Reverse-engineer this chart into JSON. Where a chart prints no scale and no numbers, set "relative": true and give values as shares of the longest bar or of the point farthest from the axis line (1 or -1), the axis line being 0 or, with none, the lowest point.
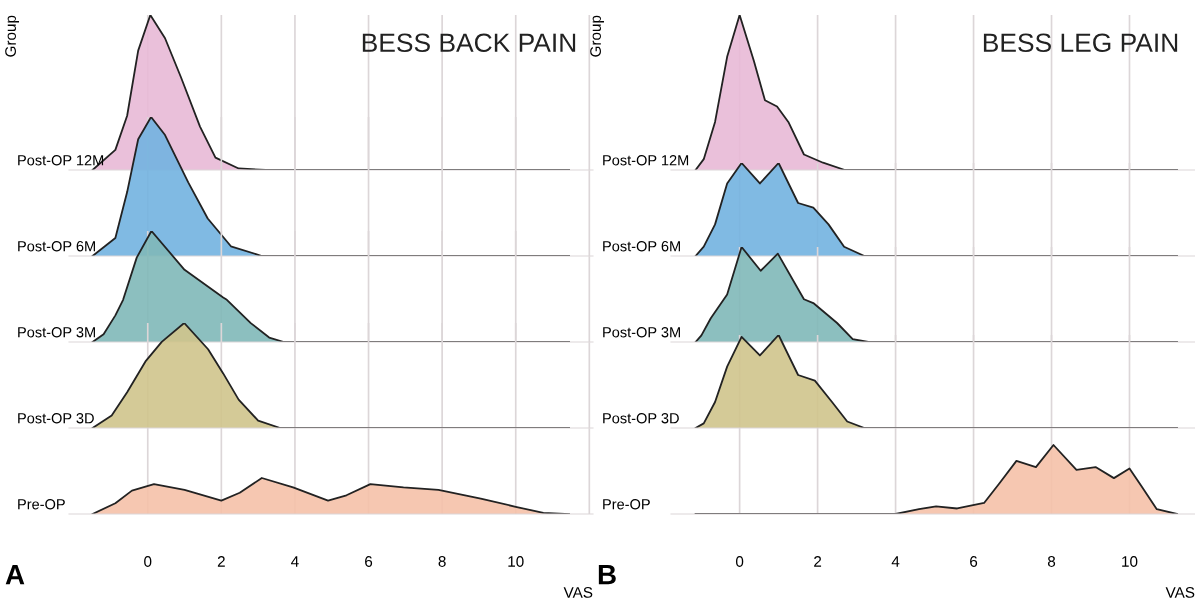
{
  "chart_data": [
    {
      "type": "area",
      "title": "BESS BACK PAIN",
      "ylabel": "Group",
      "relative": true,
      "grid": "x",
      "tick_labels": false,
      "xlim": [
        -2.14,
        12.1
      ],
      "xticks": [
        0,
        2,
        4,
        6,
        8,
        10
      ],
      "ref_lines": [
        {
          "axis": "x",
          "value": 12,
          "color": "#dcd6d8"
        }
      ],
      "series": [
        {
          "name": "Post-OP 12M",
          "color": "#e8b9d6",
          "x": [
            -1.5,
            -0.88,
            -0.56,
            -0.26,
            0.07,
            0.47,
            0.9,
            1.42,
            1.84,
            2.47,
            3.2,
            11.45
          ],
          "values": [
            0,
            0.13,
            0.35,
            0.77,
            1,
            0.85,
            0.6,
            0.28,
            0.08,
            0.01,
            0,
            0
          ]
        }
      ]
    },
    {
      "type": "area",
      "relative": true,
      "grid": "x",
      "tick_labels": false,
      "xlim": [
        -2.14,
        12.1
      ],
      "xticks": [
        0,
        2,
        4,
        6,
        8,
        10
      ],
      "ref_lines": [
        {
          "axis": "x",
          "value": 12,
          "color": "#dcd6d8"
        }
      ],
      "series": [
        {
          "name": "Post-OP 6M",
          "color": "#72b2e0",
          "x": [
            -1.5,
            -0.88,
            -0.56,
            -0.26,
            0.09,
            0.47,
            1.1,
            1.63,
            2.26,
            3.1,
            11.45
          ],
          "values": [
            0,
            0.13,
            0.46,
            0.84,
            1,
            0.87,
            0.53,
            0.27,
            0.07,
            0,
            0
          ]
        }
      ]
    },
    {
      "type": "area",
      "relative": true,
      "grid": "x",
      "tick_labels": false,
      "xlim": [
        -2.14,
        12.1
      ],
      "xticks": [
        0,
        2,
        4,
        6,
        8,
        10
      ],
      "ref_lines": [
        {
          "axis": "x",
          "value": 12,
          "color": "#dcd6d8"
        }
      ],
      "series": [
        {
          "name": "Post-OP 3M",
          "color": "#7fb8b8",
          "x": [
            -1.5,
            -1.2,
            -0.88,
            -0.67,
            -0.3,
            0.1,
            1.0,
            2.05,
            2.15,
            2.8,
            3.3,
            3.7,
            11.45
          ],
          "values": [
            0,
            0.07,
            0.24,
            0.38,
            0.76,
            1,
            0.65,
            0.4,
            0.38,
            0.17,
            0.04,
            0,
            0
          ]
        }
      ]
    },
    {
      "type": "area",
      "relative": true,
      "grid": "x",
      "tick_labels": false,
      "xlim": [
        -2.14,
        12.1
      ],
      "xticks": [
        0,
        2,
        4,
        6,
        8,
        10
      ],
      "ref_lines": [
        {
          "axis": "x",
          "value": 12,
          "color": "#dcd6d8"
        }
      ],
      "series": [
        {
          "name": "Post-OP 3D",
          "color": "#cfc48c",
          "x": [
            -1.5,
            -0.98,
            -0.56,
            -0.05,
            0.38,
            0.99,
            1.64,
            2.05,
            2.47,
            3.0,
            3.6,
            11.45
          ],
          "values": [
            0,
            0.12,
            0.34,
            0.64,
            0.82,
            1,
            0.75,
            0.52,
            0.27,
            0.07,
            0,
            0
          ]
        }
      ]
    },
    {
      "type": "area",
      "xlabel": "VAS",
      "annotations": [
        "A"
      ],
      "relative": true,
      "grid": "x",
      "tick_labels": "x",
      "xlim": [
        -2.14,
        12.1
      ],
      "xticks": [
        0,
        2,
        4,
        6,
        8,
        10
      ],
      "ref_lines": [
        {
          "axis": "x",
          "value": 12,
          "color": "#dcd6d8"
        }
      ],
      "series": [
        {
          "name": "Pre-OP",
          "color": "#f5c1a8",
          "x": [
            -1.5,
            -0.88,
            -0.43,
            0.17,
            1.0,
            2.0,
            2.5,
            3.1,
            3.95,
            4.9,
            5.4,
            6.05,
            6.95,
            7.9,
            9.05,
            10.0,
            10.75,
            11.45
          ],
          "values": [
            0,
            0.3,
            0.65,
            0.83,
            0.67,
            0.37,
            0.59,
            1,
            0.74,
            0.37,
            0.52,
            0.83,
            0.74,
            0.67,
            0.43,
            0.2,
            0.03,
            0
          ]
        }
      ]
    },
    {
      "type": "area",
      "title": "BESS LEG PAIN",
      "ylabel": "Group",
      "relative": true,
      "grid": "x",
      "tick_labels": false,
      "xlim": [
        -1.76,
        11.68
      ],
      "xticks": [
        0,
        2,
        4,
        6,
        8,
        10
      ],
      "series": [
        {
          "name": "Post-OP 12M",
          "color": "#e8b9d6",
          "x": [
            -1.13,
            -0.92,
            -0.63,
            -0.32,
            0.0,
            0.37,
            0.65,
            0.96,
            1.25,
            1.65,
            2.14,
            2.7,
            11.22
          ],
          "values": [
            0,
            0.07,
            0.31,
            0.73,
            1,
            0.7,
            0.45,
            0.41,
            0.31,
            0.1,
            0.047,
            0,
            0
          ]
        }
      ]
    },
    {
      "type": "area",
      "relative": true,
      "grid": "x",
      "tick_labels": false,
      "xlim": [
        -1.76,
        11.68
      ],
      "xticks": [
        0,
        2,
        4,
        6,
        8,
        10
      ],
      "series": [
        {
          "name": "Post-OP 6M",
          "color": "#72b2e0",
          "x": [
            -1.13,
            -0.92,
            -0.63,
            -0.32,
            0.05,
            0.52,
            1.0,
            1.5,
            1.89,
            2.28,
            2.68,
            3.2,
            11.22
          ],
          "values": [
            0,
            0.1,
            0.34,
            0.78,
            1,
            0.78,
            1,
            0.57,
            0.52,
            0.34,
            0.1,
            0,
            0
          ]
        }
      ]
    },
    {
      "type": "area",
      "relative": true,
      "grid": "x",
      "tick_labels": false,
      "xlim": [
        -1.76,
        11.68
      ],
      "xticks": [
        0,
        2,
        4,
        6,
        8,
        10
      ],
      "series": [
        {
          "name": "Post-OP 3M",
          "color": "#7fb8b8",
          "x": [
            -1.13,
            -0.98,
            -0.74,
            -0.32,
            0.05,
            0.54,
            0.98,
            1.65,
            1.89,
            2.5,
            2.9,
            3.3,
            11.22
          ],
          "values": [
            0,
            0.07,
            0.25,
            0.5,
            1,
            0.75,
            0.93,
            0.45,
            0.41,
            0.2,
            0.03,
            0,
            0
          ]
        }
      ]
    },
    {
      "type": "area",
      "relative": true,
      "grid": "x",
      "tick_labels": false,
      "xlim": [
        -1.76,
        11.68
      ],
      "xticks": [
        0,
        2,
        4,
        6,
        8,
        10
      ],
      "series": [
        {
          "name": "Post-OP 3D",
          "color": "#cfc48c",
          "x": [
            -1.13,
            -0.92,
            -0.63,
            -0.32,
            0.05,
            0.52,
            1.0,
            1.5,
            1.93,
            2.37,
            2.76,
            3.2,
            11.22
          ],
          "values": [
            0,
            0.05,
            0.28,
            0.66,
            0.98,
            0.78,
            1,
            0.57,
            0.51,
            0.28,
            0.07,
            0,
            0
          ]
        }
      ]
    },
    {
      "type": "area",
      "xlabel": "VAS",
      "annotations": [
        "B"
      ],
      "relative": true,
      "grid": "x",
      "tick_labels": "x",
      "xlim": [
        -1.76,
        11.68
      ],
      "xticks": [
        0,
        2,
        4,
        6,
        8,
        10
      ],
      "series": [
        {
          "name": "Pre-OP",
          "color": "#f5c1a8",
          "x": [
            -1.13,
            4.0,
            4.6,
            5.04,
            5.58,
            6.27,
            6.67,
            7.1,
            7.6,
            8.05,
            8.64,
            9.13,
            9.6,
            10.0,
            10.3,
            10.7,
            11.22
          ],
          "values": [
            0,
            0,
            0.07,
            0.11,
            0.08,
            0.16,
            0.45,
            0.77,
            0.68,
            1,
            0.64,
            0.68,
            0.52,
            0.66,
            0.41,
            0.07,
            0
          ]
        }
      ]
    }
  ]
}
